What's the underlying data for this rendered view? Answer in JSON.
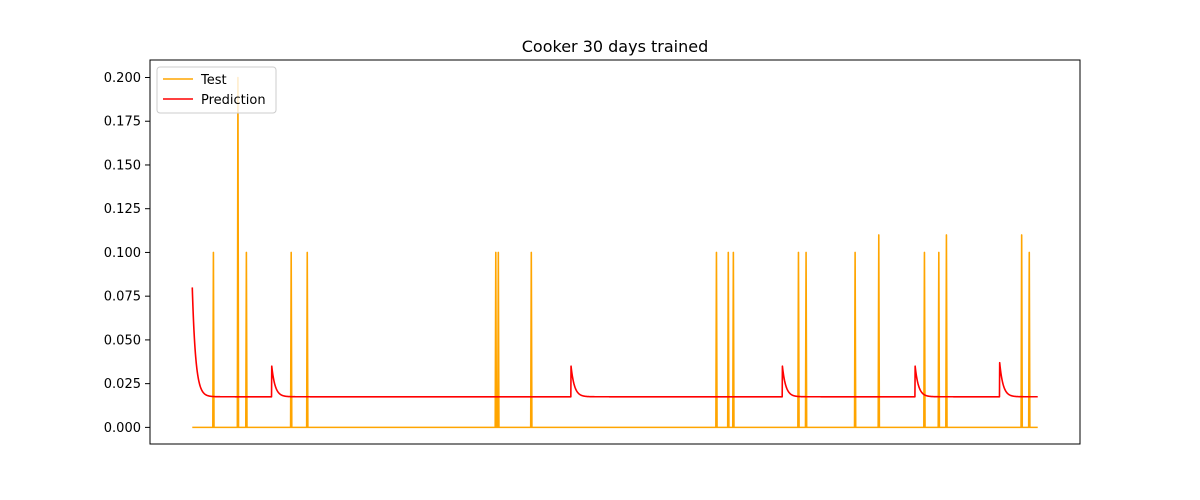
{
  "chart_data": {
    "type": "line",
    "title": "Cooker 30 days trained",
    "xlabel": "",
    "ylabel": "",
    "x_ticks_shown": false,
    "xlim": [
      -50,
      1050
    ],
    "ylim": [
      -0.0095,
      0.21
    ],
    "y_ticks": [
      0.0,
      0.025,
      0.05,
      0.075,
      0.1,
      0.125,
      0.15,
      0.175,
      0.2
    ],
    "y_tick_labels": [
      "0.000",
      "0.025",
      "0.050",
      "0.075",
      "0.100",
      "0.125",
      "0.150",
      "0.175",
      "0.200"
    ],
    "grid": false,
    "legend_position": "upper-left",
    "x_range": [
      0,
      1000
    ],
    "series": [
      {
        "name": "Test",
        "color": "#ffa500",
        "baseline": 0.0,
        "spikes": [
          {
            "x": 25,
            "y": 0.1
          },
          {
            "x": 54,
            "y": 0.2
          },
          {
            "x": 64,
            "y": 0.1
          },
          {
            "x": 117,
            "y": 0.1
          },
          {
            "x": 136,
            "y": 0.1
          },
          {
            "x": 359,
            "y": 0.1
          },
          {
            "x": 362,
            "y": 0.1
          },
          {
            "x": 401,
            "y": 0.1
          },
          {
            "x": 620,
            "y": 0.1
          },
          {
            "x": 634,
            "y": 0.1
          },
          {
            "x": 640,
            "y": 0.1
          },
          {
            "x": 717,
            "y": 0.1
          },
          {
            "x": 726,
            "y": 0.1
          },
          {
            "x": 784,
            "y": 0.1
          },
          {
            "x": 812,
            "y": 0.11
          },
          {
            "x": 866,
            "y": 0.1
          },
          {
            "x": 883,
            "y": 0.1
          },
          {
            "x": 892,
            "y": 0.11
          },
          {
            "x": 981,
            "y": 0.11
          },
          {
            "x": 990,
            "y": 0.1
          }
        ]
      },
      {
        "name": "Prediction",
        "color": "#ff0000",
        "baseline": 0.0175,
        "peaks": [
          {
            "x": 0,
            "y": 0.08
          },
          {
            "x": 94,
            "y": 0.035
          },
          {
            "x": 448,
            "y": 0.035
          },
          {
            "x": 698,
            "y": 0.035
          },
          {
            "x": 855,
            "y": 0.035
          },
          {
            "x": 955,
            "y": 0.037
          }
        ]
      }
    ]
  }
}
